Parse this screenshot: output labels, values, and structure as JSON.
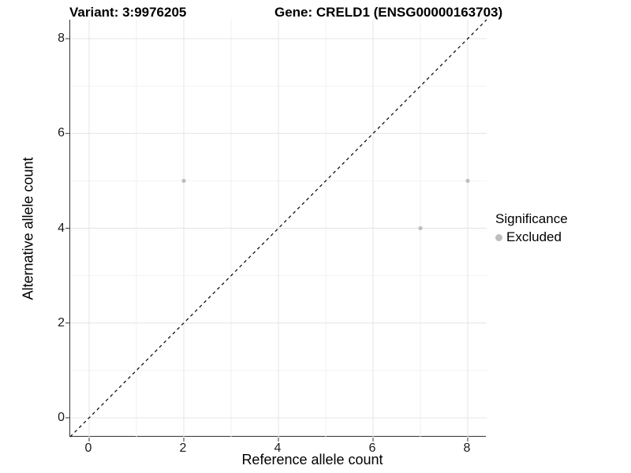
{
  "figure": {
    "title_left": "Variant: 3:9976205",
    "title_right": "Gene: CRELD1 (ENSG00000163703)"
  },
  "chart_data": {
    "type": "scatter",
    "title": "Variant: 3:9976205   Gene: CRELD1 (ENSG00000163703)",
    "xlabel": "Reference allele count",
    "ylabel": "Alternative allele count",
    "xlim": [
      -0.4,
      8.4
    ],
    "ylim": [
      -0.4,
      8.4
    ],
    "xticks": [
      0,
      2,
      4,
      6,
      8
    ],
    "yticks": [
      0,
      2,
      4,
      6,
      8
    ],
    "xticks_minor": [
      1,
      3,
      5,
      7
    ],
    "yticks_minor": [
      1,
      3,
      5,
      7
    ],
    "grid": true,
    "legend_position": "right",
    "series": [
      {
        "name": "Excluded",
        "color": "#bebebe",
        "points": [
          {
            "x": 2,
            "y": 5
          },
          {
            "x": 7,
            "y": 4
          },
          {
            "x": 8,
            "y": 5
          }
        ]
      }
    ],
    "reference_line": {
      "type": "identity",
      "slope": 1,
      "intercept": 0,
      "style": "dashed",
      "color": "#000000"
    },
    "legend": {
      "title": "Significance",
      "items": [
        {
          "label": "Excluded",
          "color": "#bebebe"
        }
      ]
    },
    "colors": {
      "background": "#ffffff",
      "grid_major": "#e4e4e4",
      "grid_minor": "#f2f2f2",
      "axis": "#333333",
      "tick": "#333333",
      "text": "#000000",
      "point": "#bebebe"
    }
  }
}
